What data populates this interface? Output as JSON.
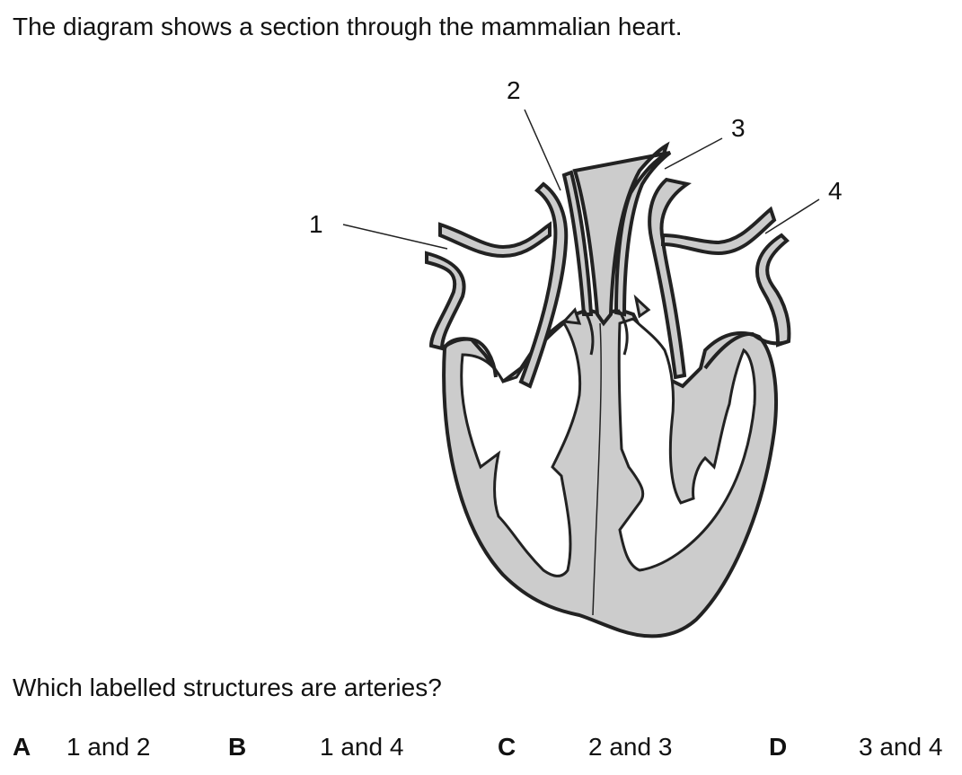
{
  "intro": "The diagram shows a section through the mammalian heart.",
  "diagram": {
    "labels": [
      "1",
      "2",
      "3",
      "4"
    ],
    "colors": {
      "wall_fill": "#cccccc",
      "outline": "#222222",
      "vessel_fill": "#cccccc"
    }
  },
  "question": "Which labelled structures are arteries?",
  "options": [
    {
      "letter": "A",
      "text": "1 and 2"
    },
    {
      "letter": "B",
      "text": "1 and 4"
    },
    {
      "letter": "C",
      "text": "2 and 3"
    },
    {
      "letter": "D",
      "text": "3 and 4"
    }
  ]
}
